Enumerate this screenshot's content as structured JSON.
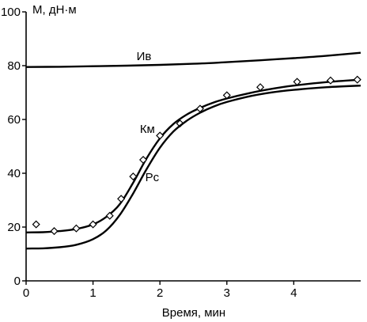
{
  "chart_data": {
    "type": "line",
    "ylabel": "M, дН·м",
    "xlabel": "Время, мин",
    "xlim": [
      0,
      5
    ],
    "ylim": [
      0,
      100
    ],
    "x_ticks": [
      0,
      1,
      2,
      3,
      4
    ],
    "y_ticks": [
      0,
      20,
      40,
      60,
      80,
      100
    ],
    "grid": false,
    "series": [
      {
        "name": "Ив",
        "marker": "none",
        "x": [
          0,
          0.5,
          1,
          1.5,
          2,
          2.5,
          3,
          3.5,
          4,
          4.5,
          5
        ],
        "y": [
          79.5,
          79.6,
          79.8,
          80.0,
          80.3,
          80.7,
          81.3,
          82.0,
          82.8,
          83.7,
          84.8
        ],
        "label_at": [
          1.65,
          82
        ]
      },
      {
        "name": "Км",
        "marker": "diamond",
        "x": [
          0,
          0.25,
          0.5,
          0.75,
          1.0,
          1.2,
          1.4,
          1.6,
          1.8,
          2.0,
          2.2,
          2.4,
          2.6,
          2.8,
          3.0,
          3.3,
          3.6,
          4.0,
          4.5,
          5.0
        ],
        "y": [
          18,
          18.1,
          18.5,
          19.3,
          21,
          23.8,
          28.5,
          36.5,
          45.5,
          53,
          58.3,
          61.8,
          64.3,
          66.3,
          67.8,
          69.6,
          71.1,
          72.6,
          73.9,
          74.8
        ],
        "marker_x": [
          0.15,
          0.42,
          0.75,
          1.0,
          1.25,
          1.42,
          1.6,
          1.75,
          2.0,
          2.3,
          2.6,
          3.0,
          3.5,
          4.05,
          4.55,
          4.95
        ],
        "marker_y": [
          21,
          18.5,
          19.5,
          21,
          24.2,
          30.5,
          38.8,
          45,
          54,
          58.5,
          64,
          69,
          72,
          74,
          74.5,
          74.8
        ],
        "label_at": [
          1.7,
          55
        ]
      },
      {
        "name": "Рс",
        "marker": "none",
        "x": [
          0,
          0.25,
          0.5,
          0.75,
          1.0,
          1.2,
          1.4,
          1.6,
          1.8,
          2.0,
          2.2,
          2.4,
          2.6,
          2.8,
          3.0,
          3.3,
          3.6,
          4.0,
          4.5,
          5.0
        ],
        "y": [
          12,
          12.1,
          12.5,
          13.4,
          15.5,
          18.8,
          24.5,
          32.5,
          41.5,
          49.5,
          55.5,
          59.5,
          62.5,
          64.8,
          66.5,
          68.4,
          69.8,
          71.0,
          72.0,
          72.6
        ],
        "label_at": [
          1.78,
          37
        ]
      }
    ]
  }
}
